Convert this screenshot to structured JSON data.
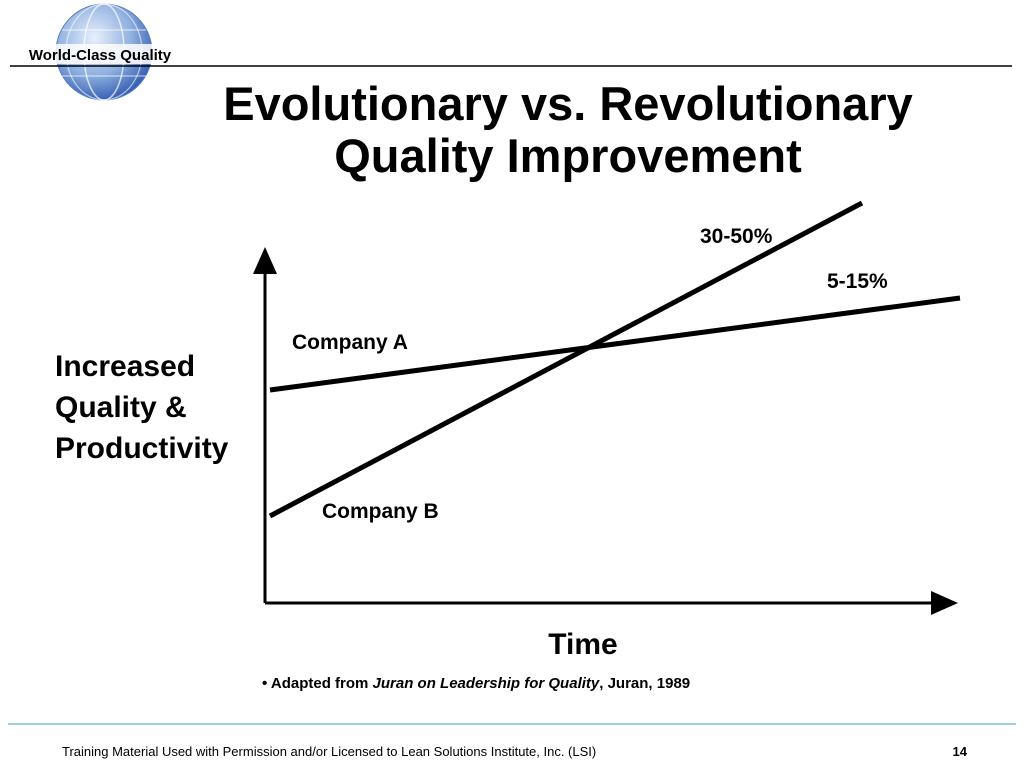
{
  "header": {
    "brand": "World-Class Quality",
    "title_lines": [
      "Evolutionary vs. Revolutionary",
      "Quality Improvement"
    ]
  },
  "diagram": {
    "y_axis_label_lines": [
      "Increased",
      "Quality &",
      "Productivity"
    ],
    "x_axis_label": "Time",
    "line_labels": {
      "company_a": "Company A",
      "company_b": "Company B",
      "company_a_rate": "5-15%",
      "company_b_rate": "30-50%"
    }
  },
  "source": {
    "prefix": "• Adapted from ",
    "book": "Juran on Leadership for Quality",
    "suffix": ", Juran, 1989"
  },
  "footer": {
    "text": "Training Material Used with Permission and/or Licensed to Lean Solutions Institute, Inc. (LSI)",
    "page": "14"
  }
}
